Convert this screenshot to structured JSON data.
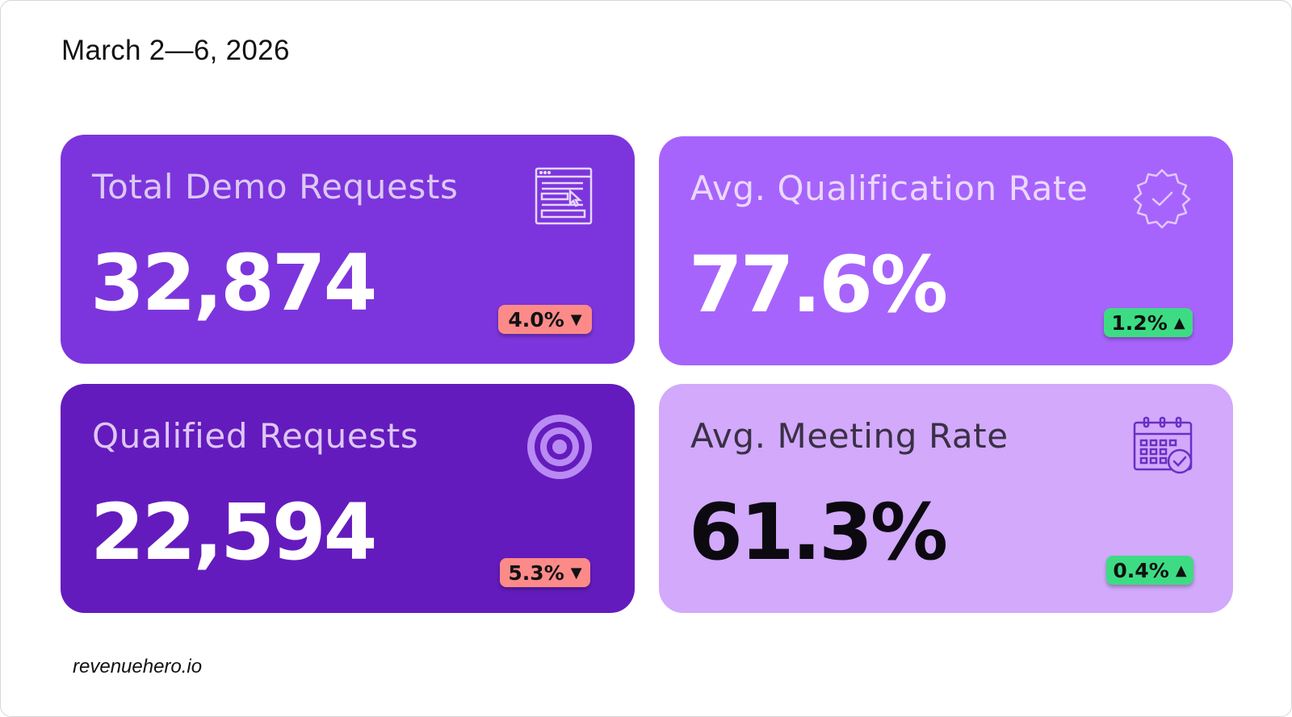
{
  "header": {
    "date_range": "March 2—6, 2026"
  },
  "cards": [
    {
      "label": "Total Demo Requests",
      "value": "32,874",
      "change": "4.0%",
      "arrow": "▼",
      "trend": "down",
      "icon": "form-cursor-icon",
      "bg": "#7c35dc"
    },
    {
      "label": "Avg. Qualification Rate",
      "value": "77.6%",
      "change": "1.2%",
      "arrow": "▲",
      "trend": "up",
      "icon": "verified-badge-icon",
      "bg": "#a764fc"
    },
    {
      "label": "Qualified Requests",
      "value": "22,594",
      "change": "5.3%",
      "arrow": "▼",
      "trend": "down",
      "icon": "target-icon",
      "bg": "#641bbd"
    },
    {
      "label": "Avg. Meeting Rate",
      "value": "61.3%",
      "change": "0.4%",
      "arrow": "▲",
      "trend": "up",
      "icon": "calendar-check-icon",
      "bg": "#d2a9fb"
    }
  ],
  "colors": {
    "down_badge": "#fc8a89",
    "up_badge": "#3ddc84"
  },
  "footer": {
    "brand": "revenuehero.io"
  }
}
